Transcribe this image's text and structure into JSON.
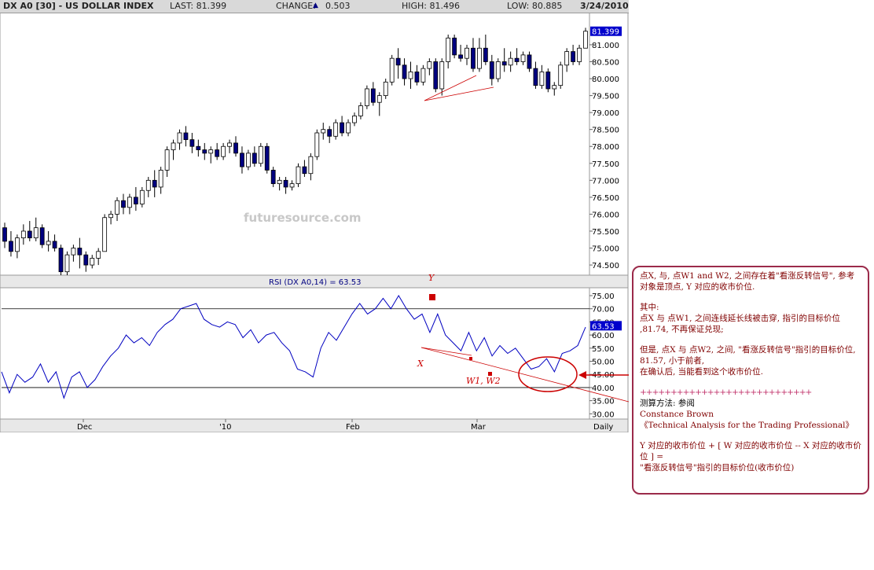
{
  "header": {
    "symbol": "DX A0 [30] - US DOLLAR INDEX",
    "last": "LAST: 81.399",
    "change_label": "CHANGE:",
    "change_arrow": "▲",
    "change_value": "0.503",
    "high": "HIGH: 81.496",
    "low": "LOW: 80.885",
    "date": "3/24/2010"
  },
  "watermark": "futuresource.com",
  "rsi_title": "RSI (DX A0,14) = 63.53",
  "period_label": "Daily",
  "colors": {
    "up": "#ffffff",
    "down": "#000080",
    "rsi_line": "#0000c0",
    "annotation": "#cc0000",
    "last_box": "#0000cc"
  },
  "chart_data": [
    {
      "type": "candlestick",
      "title": "DX A0 [30] - US DOLLAR INDEX",
      "y_ticks": [
        "81.000",
        "80.500",
        "80.000",
        "79.500",
        "79.000",
        "78.500",
        "78.000",
        "77.500",
        "77.000",
        "76.500",
        "76.000",
        "75.500",
        "75.000",
        "74.500"
      ],
      "y_range": [
        74.2,
        81.95
      ],
      "last_value_label": "81.399",
      "x_labels": [
        "Dec",
        "'10",
        "Feb",
        "Mar"
      ],
      "ohlc": [
        [
          75.6,
          75.75,
          75.0,
          75.2
        ],
        [
          75.2,
          75.5,
          74.75,
          74.9
        ],
        [
          74.9,
          75.4,
          74.7,
          75.3
        ],
        [
          75.3,
          75.7,
          75.1,
          75.5
        ],
        [
          75.5,
          75.8,
          75.2,
          75.3
        ],
        [
          75.3,
          75.9,
          75.2,
          75.6
        ],
        [
          75.6,
          75.7,
          75.0,
          75.1
        ],
        [
          75.1,
          75.5,
          74.9,
          75.2
        ],
        [
          75.2,
          75.4,
          74.9,
          75.0
        ],
        [
          75.0,
          75.1,
          74.2,
          74.3
        ],
        [
          74.3,
          74.9,
          74.2,
          74.8
        ],
        [
          74.8,
          75.1,
          74.6,
          75.0
        ],
        [
          75.0,
          75.3,
          74.4,
          74.8
        ],
        [
          74.8,
          74.9,
          74.3,
          74.5
        ],
        [
          74.5,
          74.8,
          74.4,
          74.7
        ],
        [
          74.7,
          75.0,
          74.5,
          74.9
        ],
        [
          74.9,
          76.0,
          74.9,
          75.9
        ],
        [
          75.9,
          76.1,
          75.7,
          76.0
        ],
        [
          76.0,
          76.5,
          75.8,
          76.4
        ],
        [
          76.4,
          76.6,
          76.0,
          76.2
        ],
        [
          76.2,
          76.6,
          76.0,
          76.5
        ],
        [
          76.5,
          76.8,
          76.1,
          76.3
        ],
        [
          76.3,
          76.8,
          76.2,
          76.7
        ],
        [
          76.7,
          77.1,
          76.5,
          77.0
        ],
        [
          77.0,
          77.3,
          76.5,
          76.8
        ],
        [
          76.8,
          77.4,
          76.6,
          77.3
        ],
        [
          77.3,
          78.0,
          77.1,
          77.9
        ],
        [
          77.9,
          78.2,
          77.6,
          78.1
        ],
        [
          78.1,
          78.5,
          77.9,
          78.4
        ],
        [
          78.4,
          78.6,
          78.0,
          78.2
        ],
        [
          78.2,
          78.4,
          77.8,
          78.0
        ],
        [
          78.0,
          78.2,
          77.7,
          77.9
        ],
        [
          77.9,
          78.1,
          77.6,
          77.8
        ],
        [
          77.8,
          78.0,
          77.5,
          77.9
        ],
        [
          77.9,
          78.1,
          77.6,
          77.7
        ],
        [
          77.7,
          78.1,
          77.6,
          78.0
        ],
        [
          78.0,
          78.2,
          77.8,
          78.1
        ],
        [
          78.1,
          78.3,
          77.7,
          77.8
        ],
        [
          77.8,
          78.0,
          77.2,
          77.4
        ],
        [
          77.4,
          77.9,
          77.3,
          77.8
        ],
        [
          77.8,
          78.0,
          77.4,
          77.5
        ],
        [
          77.5,
          78.1,
          77.4,
          78.0
        ],
        [
          78.0,
          78.1,
          77.2,
          77.3
        ],
        [
          77.3,
          77.4,
          76.8,
          76.9
        ],
        [
          76.9,
          77.1,
          76.7,
          77.0
        ],
        [
          77.0,
          77.1,
          76.6,
          76.8
        ],
        [
          76.8,
          77.0,
          76.7,
          76.9
        ],
        [
          76.9,
          77.5,
          76.8,
          77.4
        ],
        [
          77.4,
          77.6,
          77.1,
          77.2
        ],
        [
          77.2,
          77.8,
          77.0,
          77.7
        ],
        [
          77.7,
          78.5,
          77.6,
          78.4
        ],
        [
          78.4,
          78.7,
          78.2,
          78.5
        ],
        [
          78.5,
          78.6,
          78.1,
          78.3
        ],
        [
          78.3,
          78.8,
          78.2,
          78.7
        ],
        [
          78.7,
          78.9,
          78.3,
          78.4
        ],
        [
          78.4,
          78.8,
          78.3,
          78.7
        ],
        [
          78.7,
          79.0,
          78.6,
          78.9
        ],
        [
          78.9,
          79.3,
          78.8,
          79.2
        ],
        [
          79.2,
          79.8,
          79.1,
          79.7
        ],
        [
          79.7,
          79.9,
          79.2,
          79.3
        ],
        [
          79.3,
          79.6,
          78.9,
          79.5
        ],
        [
          79.5,
          80.0,
          79.4,
          79.9
        ],
        [
          79.9,
          80.7,
          79.8,
          80.6
        ],
        [
          80.6,
          80.9,
          80.0,
          80.4
        ],
        [
          80.4,
          80.6,
          79.8,
          80.0
        ],
        [
          80.0,
          80.5,
          79.7,
          80.2
        ],
        [
          80.2,
          80.4,
          79.8,
          79.9
        ],
        [
          79.9,
          80.4,
          79.8,
          80.3
        ],
        [
          80.3,
          80.6,
          80.1,
          80.5
        ],
        [
          80.5,
          80.6,
          79.6,
          79.7
        ],
        [
          79.7,
          80.6,
          79.5,
          80.5
        ],
        [
          80.5,
          81.3,
          80.3,
          81.2
        ],
        [
          81.2,
          81.3,
          80.6,
          80.7
        ],
        [
          80.7,
          81.0,
          80.5,
          80.6
        ],
        [
          80.6,
          81.0,
          80.4,
          80.9
        ],
        [
          80.9,
          81.2,
          80.2,
          80.3
        ],
        [
          80.3,
          81.2,
          80.2,
          80.9
        ],
        [
          80.9,
          81.3,
          80.4,
          80.5
        ],
        [
          80.5,
          80.7,
          79.8,
          80.0
        ],
        [
          80.0,
          80.6,
          79.9,
          80.5
        ],
        [
          80.5,
          80.9,
          80.2,
          80.4
        ],
        [
          80.4,
          80.8,
          80.2,
          80.6
        ],
        [
          80.6,
          80.9,
          80.4,
          80.5
        ],
        [
          80.5,
          80.8,
          80.4,
          80.7
        ],
        [
          80.7,
          80.8,
          80.2,
          80.3
        ],
        [
          80.3,
          80.5,
          79.7,
          79.8
        ],
        [
          79.8,
          80.4,
          79.7,
          80.2
        ],
        [
          80.2,
          80.3,
          79.6,
          79.7
        ],
        [
          79.7,
          79.9,
          79.5,
          79.8
        ],
        [
          79.8,
          80.5,
          79.7,
          80.4
        ],
        [
          80.4,
          80.9,
          80.2,
          80.8
        ],
        [
          80.8,
          81.0,
          80.4,
          80.5
        ],
        [
          80.5,
          81.0,
          80.4,
          80.9
        ],
        [
          80.9,
          81.5,
          80.9,
          81.4
        ]
      ]
    },
    {
      "type": "line",
      "title": "RSI (DX A0,14) = 63.53",
      "y_ticks": [
        "75.00",
        "70.00",
        "65.00",
        "60.00",
        "55.00",
        "50.00",
        "45.00",
        "40.00",
        "35.00",
        "30.00"
      ],
      "y_range": [
        28,
        78
      ],
      "last_value_label": "63.53",
      "series": [
        {
          "values": [
            46,
            38,
            45,
            42,
            44,
            49,
            42,
            46,
            36,
            44,
            46,
            40,
            43,
            48,
            52,
            55,
            60,
            57,
            59,
            56,
            61,
            64,
            66,
            70,
            71,
            72,
            66,
            64,
            63,
            65,
            64,
            59,
            62,
            57,
            60,
            61,
            57,
            54,
            47,
            46,
            44,
            55,
            61,
            58,
            63,
            68,
            72,
            68,
            70,
            74,
            70,
            75,
            70,
            66,
            68,
            61,
            68,
            60,
            57,
            54,
            61,
            54,
            59,
            52,
            56,
            53,
            55,
            51,
            47,
            48,
            51,
            46,
            53,
            54,
            56,
            63
          ]
        }
      ],
      "reference_lines": [
        70,
        40
      ]
    }
  ],
  "annotations": {
    "y": "Y",
    "x": "X",
    "w": "W1, W2"
  },
  "notes": {
    "p1": "点X, 与, 点W1 and W2, 之间存在着\"看涨反转信号\", 参考对象是顶点, Y 对应的收市价位.",
    "p2a": "其中:",
    "p2b": "点X 与 点W1, 之间连线延长线被击穿, 指引的目标价位 ,81.74, 不再保证兑现;",
    "p3": "但是, 点X 与 点W2, 之间, \"看涨反转信号\"指引的目标价位, 81.57, 小于前者,",
    "p4": "在确认后, 当能看到这个收市价位.",
    "sep": "++++++++++++++++++++++++++++",
    "p5": "测算方法: 参阅",
    "p6": "Constance Brown",
    "p7": "《Technical Analysis for the Trading Professional》",
    "p8": "Y 对应的收市价位 + [ W 对应的收市价位 -- X 对应的收市价位 ] =",
    "p9": "\"看涨反转信号\"指引的目标价位(收市价位)"
  }
}
